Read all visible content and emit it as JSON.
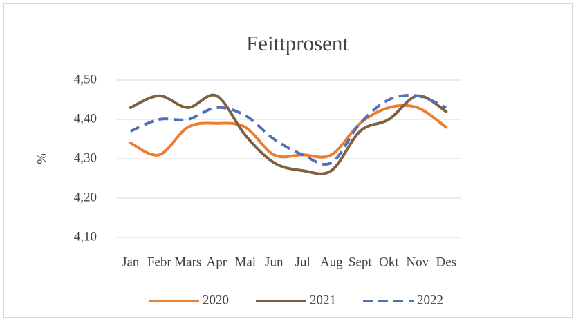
{
  "chart_data": {
    "type": "line",
    "title": "Feittprosent",
    "y_label": "%",
    "categories": [
      "Jan",
      "Febr",
      "Mars",
      "Apr",
      "Mai",
      "Jun",
      "Jul",
      "Aug",
      "Sept",
      "Okt",
      "Nov",
      "Des"
    ],
    "series": [
      {
        "name": "2020",
        "color": "#ed7d31",
        "dashed": false,
        "values": [
          4.34,
          4.31,
          4.38,
          4.39,
          4.38,
          4.31,
          4.31,
          4.31,
          4.39,
          4.43,
          4.43,
          4.38
        ]
      },
      {
        "name": "2021",
        "color": "#7f6041",
        "dashed": false,
        "values": [
          4.43,
          4.46,
          4.43,
          4.46,
          4.36,
          4.29,
          4.27,
          4.27,
          4.37,
          4.4,
          4.46,
          4.42
        ]
      },
      {
        "name": "2022",
        "color": "#5470b4",
        "dashed": true,
        "values": [
          4.37,
          4.4,
          4.4,
          4.43,
          4.41,
          4.35,
          4.31,
          4.29,
          4.39,
          4.45,
          4.46,
          4.43
        ]
      }
    ],
    "smooth": true,
    "ylim": [
      4.1,
      4.5
    ],
    "yticks": [
      {
        "value": 4.1,
        "label": "4,10"
      },
      {
        "value": 4.2,
        "label": "4,20"
      },
      {
        "value": 4.3,
        "label": "4,30"
      },
      {
        "value": 4.4,
        "label": "4,40"
      },
      {
        "value": 4.5,
        "label": "4,50"
      }
    ],
    "grid": true,
    "legend": "bottom"
  }
}
